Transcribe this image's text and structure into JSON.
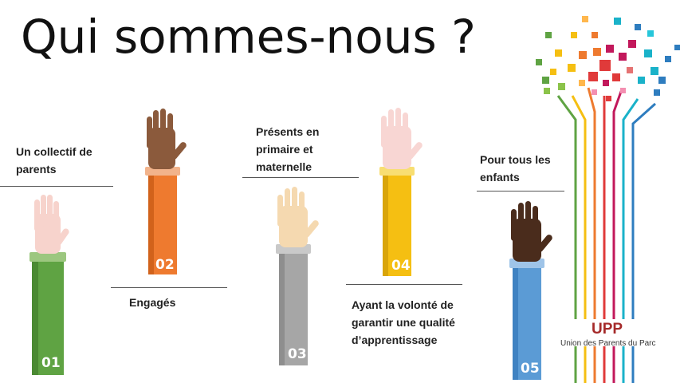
{
  "title": "Qui sommes-nous ?",
  "items": [
    {
      "number": "01",
      "caption": "Un collectif de parents",
      "sleeve_color": "#5fa343",
      "cuff_color": "#9cc77f",
      "skin_color": "#f7d3cc"
    },
    {
      "number": "02",
      "caption": "Engagés",
      "sleeve_color": "#ee7a2f",
      "cuff_color": "#f2b38b",
      "skin_color": "#8b5a3c"
    },
    {
      "number": "03",
      "caption": "Présents en primaire et maternelle",
      "sleeve_color": "#a6a6a6",
      "cuff_color": "#c9c9c9",
      "skin_color": "#f5d9b0"
    },
    {
      "number": "04",
      "caption": "Ayant la volonté de garantir une qualité d’apprentissage",
      "sleeve_color": "#f5bf12",
      "cuff_color": "#f8de72",
      "skin_color": "#f8d6d3"
    },
    {
      "number": "05",
      "caption": "Pour tous les enfants",
      "sleeve_color": "#5b9bd5",
      "cuff_color": "#9fc4e8",
      "skin_color": "#4a2c1c"
    }
  ],
  "logo": {
    "acronym": "UPP",
    "name": "Union des Parents du Parc",
    "acronym_color": "#a52a2a"
  }
}
